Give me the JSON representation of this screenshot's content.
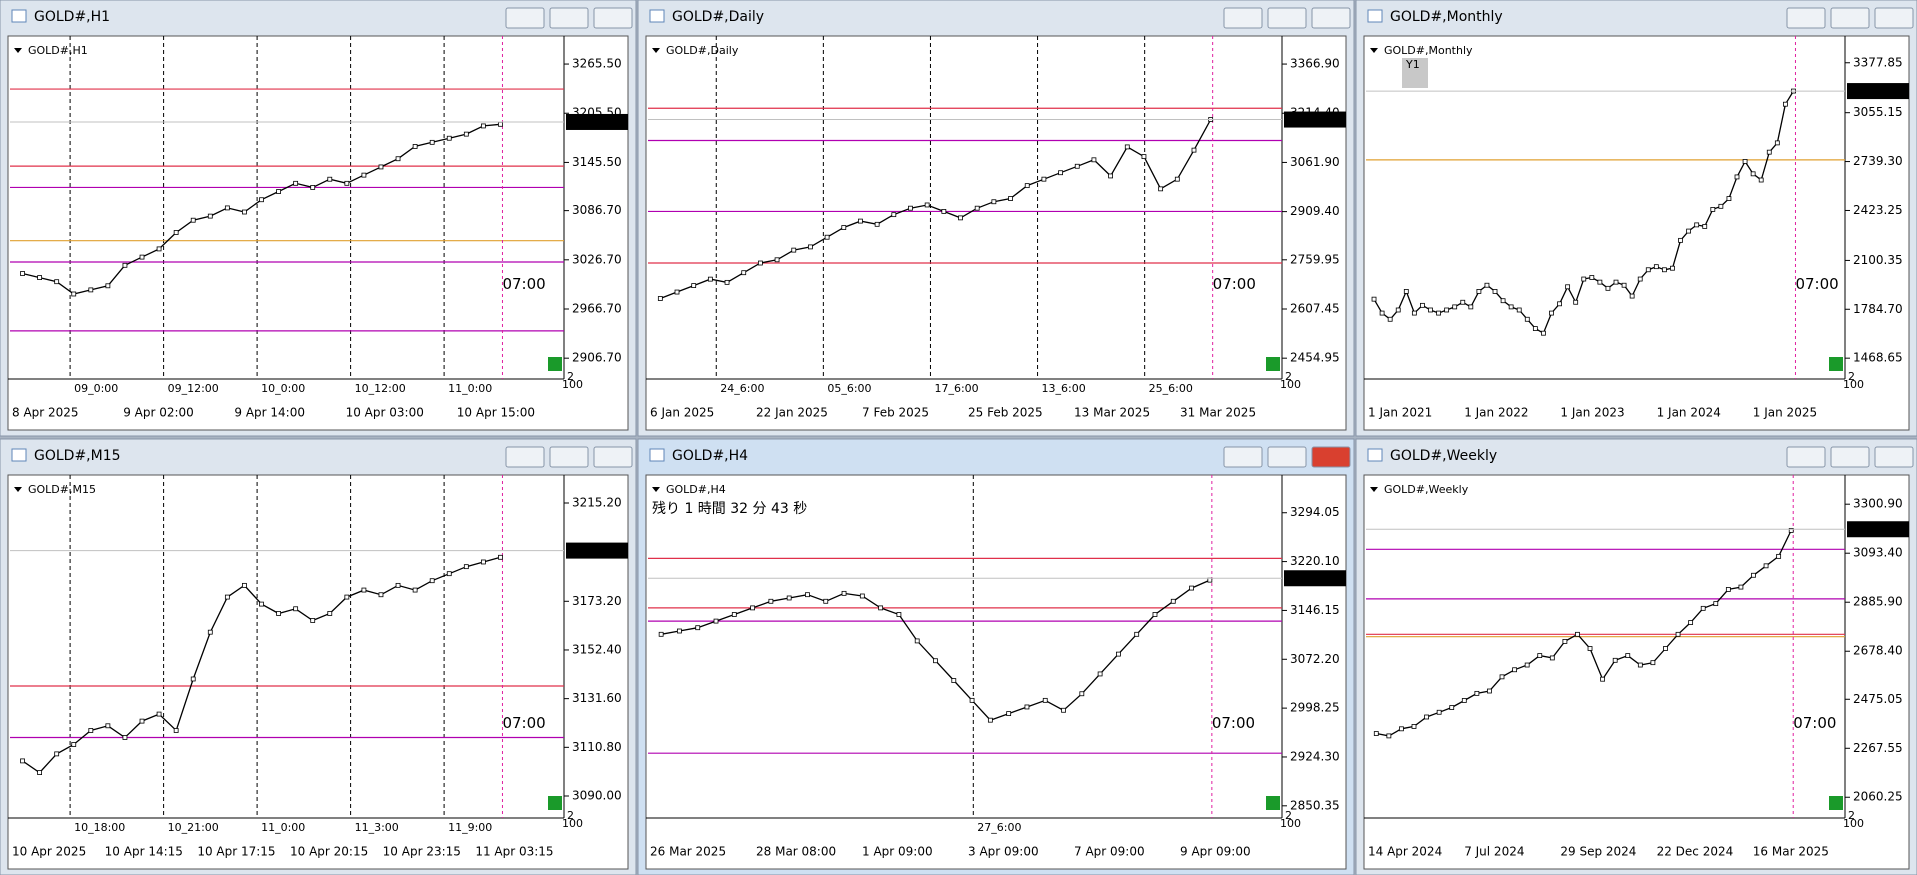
{
  "windows": [
    {
      "title": "GOLD#,H1",
      "symbol_label": "GOLD#,H1",
      "current_price": 3194.86,
      "time_marker": "07:00",
      "axis_corner_top": "2",
      "axis_corner_bottom": "100",
      "ylim": [
        2881.3,
        3292.4
      ],
      "yticks": [
        {
          "value": 3265.5,
          "label": "3265.50"
        },
        {
          "value": 3205.5,
          "label": "3205.50"
        },
        {
          "value": 3145.5,
          "label": "3145.50"
        },
        {
          "value": 3086.7,
          "label": "3086.70"
        },
        {
          "value": 3026.7,
          "label": "3026.70"
        },
        {
          "value": 2966.7,
          "label": "2966.70"
        },
        {
          "value": 2906.7,
          "label": "2906.70"
        }
      ],
      "time_labels": [
        "8 Apr 2025",
        "9 Apr 02:00",
        "9 Apr 14:00",
        "10 Apr 03:00",
        "10 Apr 15:00"
      ],
      "session_labels": [
        "09_0:00",
        "09_12:00",
        "10_0:00",
        "10_12:00",
        "11_0:00"
      ],
      "levels": [
        {
          "value": 3235,
          "color": "#e0304a"
        },
        {
          "value": 3141,
          "color": "#e0304a"
        },
        {
          "value": 3115,
          "color": "#b000b0"
        },
        {
          "value": 3050,
          "color": "#e0a030"
        },
        {
          "value": 3024,
          "color": "#b000b0"
        },
        {
          "value": 2940,
          "color": "#b000b0"
        }
      ],
      "closes": [
        3010,
        3005,
        3000,
        2985,
        2990,
        2995,
        3020,
        3030,
        3040,
        3060,
        3075,
        3080,
        3090,
        3085,
        3100,
        3110,
        3120,
        3115,
        3125,
        3120,
        3130,
        3140,
        3150,
        3165,
        3170,
        3175,
        3180,
        3190,
        3192
      ]
    },
    {
      "title": "GOLD#,Daily",
      "symbol_label": "GOLD#,Daily",
      "current_price": 3194.86,
      "time_marker": "07:00",
      "axis_corner_top": "2",
      "axis_corner_bottom": "100",
      "ylim": [
        2390.4,
        3435.3
      ],
      "yticks": [
        {
          "value": 3366.9,
          "label": "3366.90"
        },
        {
          "value": 3214.4,
          "label": "3214.40"
        },
        {
          "value": 3061.9,
          "label": "3061.90"
        },
        {
          "value": 2909.4,
          "label": "2909.40"
        },
        2759.95,
        2607.45,
        2454.95
      ],
      "time_labels": [
        "6 Jan 2025",
        "22 Jan 2025",
        "7 Feb 2025",
        "25 Feb 2025",
        "13 Mar 2025",
        "31 Mar 2025"
      ],
      "session_labels": [
        "24_6:00",
        "05_6:00",
        "17_6:00",
        "13_6:00",
        "25_6:00"
      ],
      "levels": [
        {
          "value": 3230,
          "color": "#e0304a"
        },
        {
          "value": 3130,
          "color": "#b000b0"
        },
        {
          "value": 2910,
          "color": "#b000b0"
        },
        {
          "value": 2750,
          "color": "#e0304a"
        }
      ],
      "closes": [
        2640,
        2660,
        2680,
        2700,
        2690,
        2720,
        2750,
        2760,
        2790,
        2800,
        2830,
        2860,
        2880,
        2870,
        2900,
        2920,
        2930,
        2910,
        2890,
        2920,
        2940,
        2950,
        2990,
        3010,
        3030,
        3050,
        3070,
        3020,
        3110,
        3080,
        2980,
        3010,
        3100,
        3195
      ]
    },
    {
      "title": "GOLD#,Monthly",
      "symbol_label": "GOLD#,Monthly",
      "period_button": "Y1",
      "current_price": 3194.85,
      "time_marker": "07:00",
      "axis_corner_top": "2",
      "axis_corner_bottom": "100",
      "ylim": [
        1334,
        3512
      ],
      "yticks": [
        3377.85,
        3055.15,
        {
          "value": 2739.3,
          "label": "2739.30"
        },
        2423.25,
        2100.35,
        {
          "value": 1784.7,
          "label": "1784.70"
        },
        1468.65
      ],
      "time_labels": [
        "1 Jan 2021",
        "1 Jan 2022",
        "1 Jan 2023",
        "1 Jan 2024",
        "1 Jan 2025"
      ],
      "session_labels": [],
      "levels": [
        {
          "value": 2750,
          "color": "#e0a030"
        }
      ],
      "closes": [
        1850,
        1760,
        1720,
        1780,
        1900,
        1760,
        1810,
        1780,
        1760,
        1780,
        1800,
        1830,
        1800,
        1900,
        1940,
        1900,
        1840,
        1800,
        1780,
        1720,
        1660,
        1630,
        1760,
        1820,
        1930,
        1830,
        1980,
        1990,
        1960,
        1920,
        1960,
        1940,
        1870,
        1980,
        2040,
        2060,
        2040,
        2050,
        2230,
        2290,
        2330,
        2320,
        2430,
        2450,
        2500,
        2640,
        2740,
        2660,
        2620,
        2800,
        2860,
        3110,
        3195
      ]
    },
    {
      "title": "GOLD#,M15",
      "symbol_label": "GOLD#,M15",
      "current_price": 3194.86,
      "time_marker": "07:00",
      "axis_corner_top": "2",
      "axis_corner_bottom": "100",
      "ylim": [
        3080.6,
        3224.6
      ],
      "yticks": [
        {
          "value": 3215.2,
          "label": "3215.20"
        },
        {
          "value": 3173.2,
          "label": "3173.20"
        },
        {
          "value": 3152.4,
          "label": "3152.40"
        },
        {
          "value": 3131.6,
          "label": "3131.60"
        },
        {
          "value": 3110.8,
          "label": "3110.80"
        },
        {
          "value": 3090,
          "label": "3090.00"
        }
      ],
      "time_labels": [
        "10 Apr 2025",
        "10 Apr 14:15",
        "10 Apr 17:15",
        "10 Apr 20:15",
        "10 Apr 23:15",
        "11 Apr 03:15"
      ],
      "session_labels": [
        "10_18:00",
        "10_21:00",
        "11_0:00",
        "11_3:00",
        "11_9:00"
      ],
      "levels": [
        {
          "value": 3137,
          "color": "#e0304a"
        },
        {
          "value": 3115,
          "color": "#b000b0"
        }
      ],
      "closes": [
        3105,
        3100,
        3108,
        3112,
        3118,
        3120,
        3115,
        3122,
        3125,
        3118,
        3140,
        3160,
        3175,
        3180,
        3172,
        3168,
        3170,
        3165,
        3168,
        3175,
        3178,
        3176,
        3180,
        3178,
        3182,
        3185,
        3188,
        3190,
        3192
      ]
    },
    {
      "title": "GOLD#,H4",
      "symbol_label": "GOLD#,H4",
      "countdown": "残り 1 時間 32 分 43 秒",
      "current_price": 3194.86,
      "time_marker": "07:00",
      "axis_corner_top": "2",
      "axis_corner_bottom": "100",
      "ylim": [
        2831.9,
        3342.1
      ],
      "yticks": [
        3294.05,
        {
          "value": 3220.1,
          "label": "3220.10"
        },
        3146.15,
        {
          "value": 3072.2,
          "label": "3072.20"
        },
        2998.25,
        {
          "value": 2924.3,
          "label": "2924.30"
        },
        2850.35
      ],
      "time_labels": [
        "26 Mar 2025",
        "28 Mar 08:00",
        "1 Apr 09:00",
        "3 Apr 09:00",
        "7 Apr 09:00",
        "9 Apr 09:00"
      ],
      "session_labels": [
        "27_6:00"
      ],
      "levels": [
        {
          "value": 3225,
          "color": "#e0304a"
        },
        {
          "value": 3150,
          "color": "#e0304a"
        },
        {
          "value": 3130,
          "color": "#b000b0"
        },
        {
          "value": 2930,
          "color": "#b000b0"
        }
      ],
      "closes": [
        3110,
        3115,
        3120,
        3130,
        3140,
        3150,
        3160,
        3165,
        3170,
        3160,
        3172,
        3168,
        3150,
        3140,
        3100,
        3070,
        3040,
        3010,
        2980,
        2990,
        3000,
        3010,
        2995,
        3020,
        3050,
        3080,
        3110,
        3140,
        3160,
        3180,
        3192
      ]
    },
    {
      "title": "GOLD#,Weekly",
      "symbol_label": "GOLD#,Weekly",
      "current_price": 3194.86,
      "time_marker": "07:00",
      "axis_corner_top": "2",
      "axis_corner_bottom": "100",
      "ylim": [
        1972.4,
        3399.1
      ],
      "yticks": [
        {
          "value": 3300.9,
          "label": "3300.90"
        },
        {
          "value": 3093.4,
          "label": "3093.40"
        },
        {
          "value": 2885.9,
          "label": "2885.90"
        },
        {
          "value": 2678.4,
          "label": "2678.40"
        },
        2475.05,
        2267.55,
        2060.25
      ],
      "time_labels": [
        "14 Apr 2024",
        "7 Jul 2024",
        "29 Sep 2024",
        "22 Dec 2024",
        "16 Mar 2025"
      ],
      "session_labels": [],
      "levels": [
        {
          "value": 3110,
          "color": "#b000b0"
        },
        {
          "value": 2900,
          "color": "#b000b0"
        },
        {
          "value": 2750,
          "color": "#e0304a"
        },
        {
          "value": 2740,
          "color": "#e0a030"
        }
      ],
      "closes": [
        2330,
        2320,
        2350,
        2360,
        2400,
        2420,
        2440,
        2470,
        2500,
        2510,
        2570,
        2600,
        2620,
        2660,
        2650,
        2720,
        2750,
        2690,
        2560,
        2640,
        2660,
        2620,
        2630,
        2690,
        2750,
        2800,
        2860,
        2880,
        2940,
        2950,
        3000,
        3040,
        3080,
        3190
      ]
    }
  ]
}
